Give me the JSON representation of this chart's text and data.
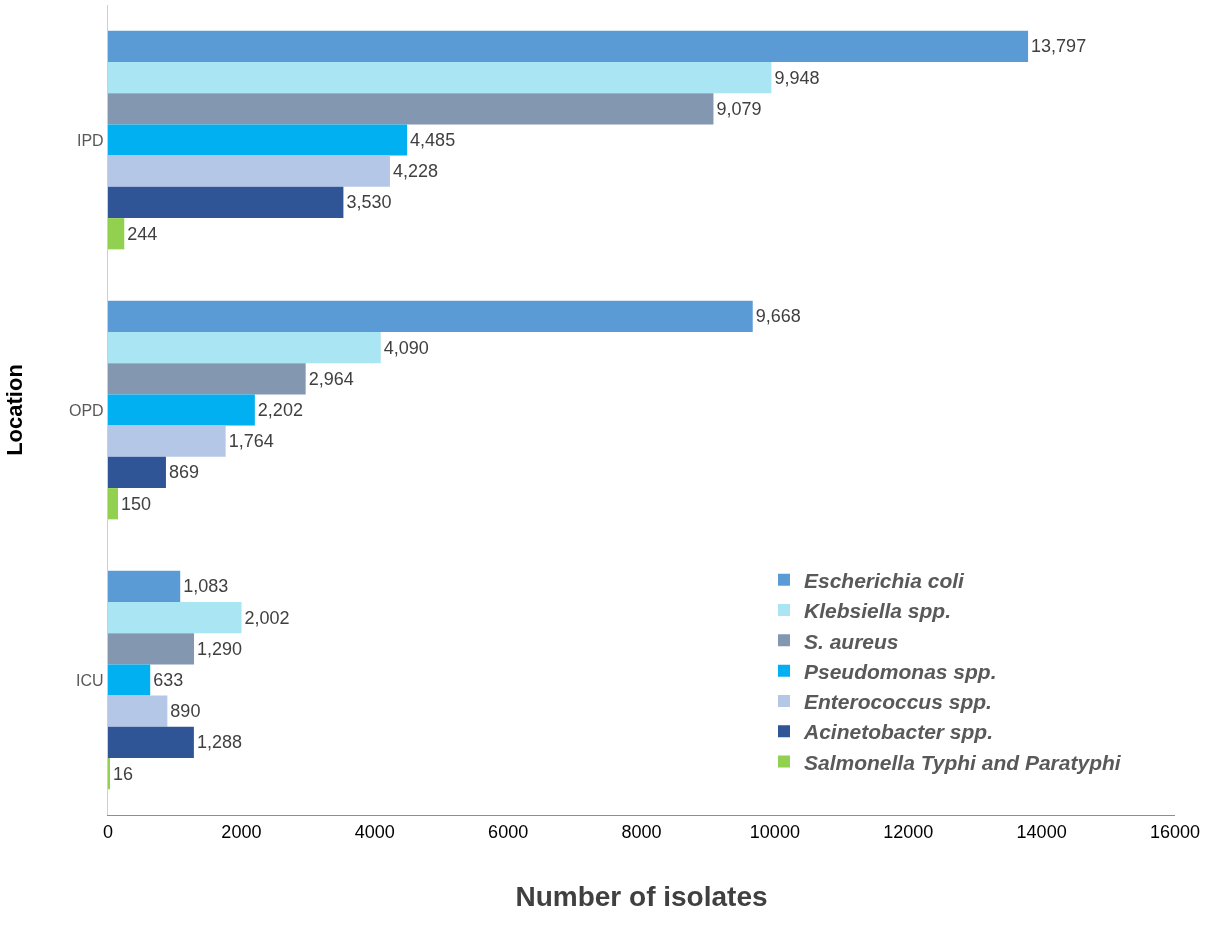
{
  "chart_data": {
    "type": "bar",
    "orientation": "horizontal",
    "xlabel": "Number of isolates",
    "ylabel": "Location",
    "categories": [
      "IPD",
      "OPD",
      "ICU"
    ],
    "series": [
      {
        "name": "Escherichia coli",
        "color": "#5b9bd5",
        "values": [
          13797,
          9668,
          1083
        ],
        "value_labels": [
          "13,797",
          "9,668",
          "1,083"
        ]
      },
      {
        "name": "Klebsiella spp.",
        "color": "#a9e5f2",
        "values": [
          9948,
          4090,
          2002
        ],
        "value_labels": [
          "9,948",
          "4,090",
          "2,002"
        ]
      },
      {
        "name": "S. aureus",
        "color": "#8497b0",
        "values": [
          9079,
          2964,
          1290
        ],
        "value_labels": [
          "9,079",
          "2,964",
          "1,290"
        ]
      },
      {
        "name": "Pseudomonas spp.",
        "color": "#00b0f0",
        "values": [
          4485,
          2202,
          633
        ],
        "value_labels": [
          "4,485",
          "2,202",
          "633"
        ]
      },
      {
        "name": "Enterococcus spp.",
        "color": "#b4c7e7",
        "values": [
          4228,
          1764,
          890
        ],
        "value_labels": [
          "4,228",
          "1,764",
          "890"
        ]
      },
      {
        "name": "Acinetobacter spp.",
        "color": "#2f5597",
        "values": [
          3530,
          869,
          1288
        ],
        "value_labels": [
          "3,530",
          "869",
          "1,288"
        ]
      },
      {
        "name": "Salmonella Typhi and Paratyphi",
        "color": "#92d050",
        "values": [
          244,
          150,
          16
        ],
        "value_labels": [
          "244",
          "150",
          "16"
        ]
      }
    ],
    "xlim": [
      0,
      16000
    ],
    "xticks": [
      0,
      2000,
      4000,
      6000,
      8000,
      10000,
      12000,
      14000,
      16000
    ],
    "legend": "bottom right"
  }
}
